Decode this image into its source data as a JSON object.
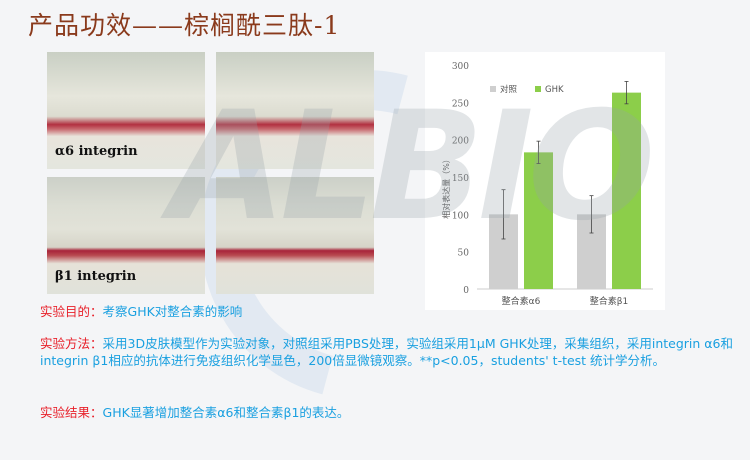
{
  "title": "产品功效——棕榈酰三肽-1",
  "micrographs": [
    {
      "label": "α6 integrin"
    },
    {
      "label": ""
    },
    {
      "label": "β1 integrin"
    },
    {
      "label": ""
    }
  ],
  "watermark": "ALBIO",
  "chart_data": {
    "type": "bar",
    "categories": [
      "整合素α6",
      "整合素β1"
    ],
    "series": [
      {
        "name": "对照",
        "color": "#cfcfcf",
        "values": [
          100,
          100
        ],
        "errors": [
          33,
          25
        ]
      },
      {
        "name": "GHK",
        "color": "#8cce4a",
        "values": [
          183,
          263
        ],
        "errors": [
          15,
          15
        ]
      }
    ],
    "ylabel": "相对表达量（%）",
    "ylim": [
      0,
      300
    ],
    "yticks": [
      0,
      50,
      100,
      150,
      200,
      250,
      300
    ],
    "legend": "top-left",
    "grid": false
  },
  "text": {
    "purpose_key": "实验目的：",
    "purpose": "考察GHK对整合素的影响",
    "method_key": "实验方法：",
    "method": "采用3D皮肤模型作为实验对象，对照组采用PBS处理，实验组采用1μM GHK处理，采集组织，采用integrin α6和integrin β1相应的抗体进行免疫组织化学显色，200倍显微镜观察。**p<0.05，students' t-test 统计学分析。",
    "result_key": "实验结果：",
    "result": "GHK显著增加整合素α6和整合素β1的表达。"
  }
}
